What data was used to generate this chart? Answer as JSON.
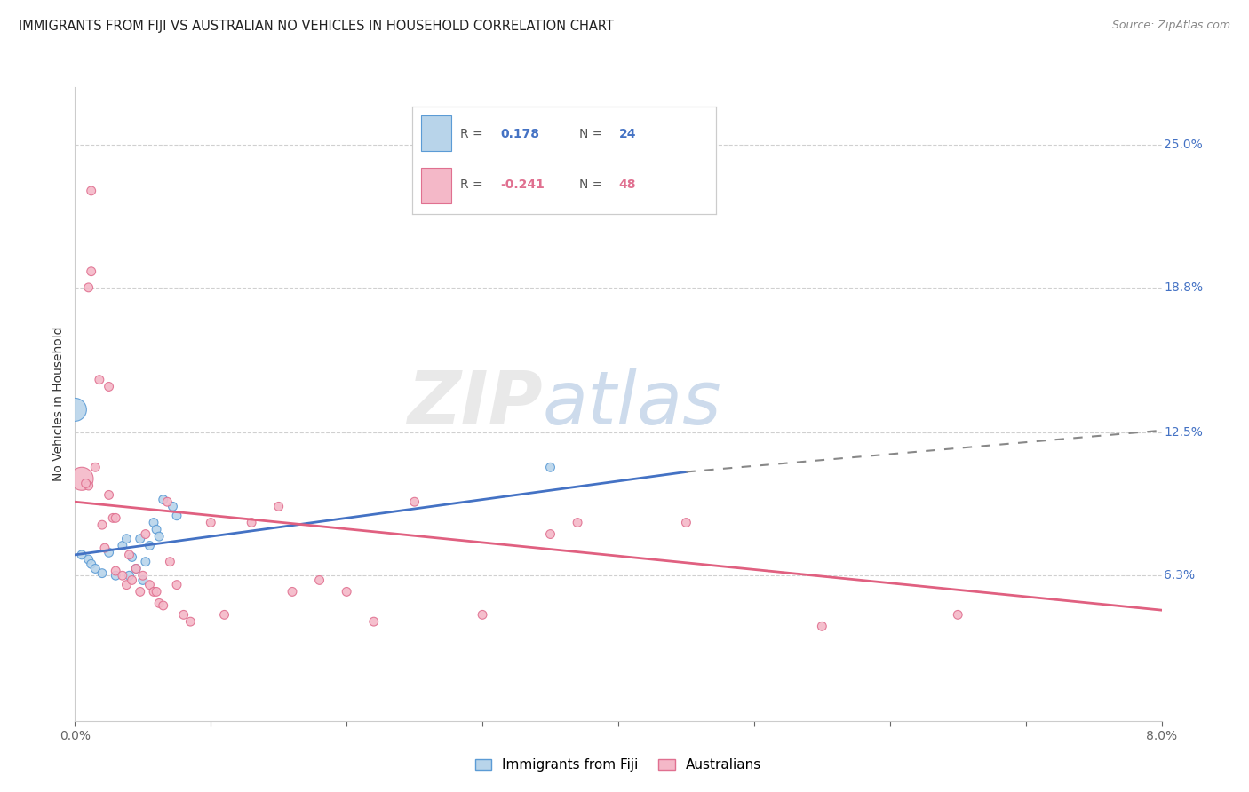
{
  "title": "IMMIGRANTS FROM FIJI VS AUSTRALIAN NO VEHICLES IN HOUSEHOLD CORRELATION CHART",
  "source": "Source: ZipAtlas.com",
  "ylabel": "No Vehicles in Household",
  "ytick_labels": [
    "6.3%",
    "12.5%",
    "18.8%",
    "25.0%"
  ],
  "ytick_values": [
    6.3,
    12.5,
    18.8,
    25.0
  ],
  "xlim": [
    0.0,
    8.0
  ],
  "ylim": [
    0.0,
    27.5
  ],
  "fiji_color": "#b8d4ea",
  "fiji_edge_color": "#5b9bd5",
  "aus_color": "#f4b8c8",
  "aus_edge_color": "#e07090",
  "fiji_R": "0.178",
  "fiji_N": "24",
  "aus_R": "-0.241",
  "aus_N": "48",
  "fiji_line_color": "#4472c4",
  "aus_line_color": "#e06080",
  "watermark_zip": "ZIP",
  "watermark_atlas": "atlas",
  "fiji_scatter_x": [
    0.05,
    0.1,
    0.12,
    0.15,
    0.2,
    0.25,
    0.3,
    0.35,
    0.38,
    0.4,
    0.42,
    0.45,
    0.48,
    0.5,
    0.52,
    0.55,
    0.58,
    0.6,
    0.62,
    0.65,
    0.72,
    0.75,
    3.5,
    0.0
  ],
  "fiji_scatter_y": [
    7.2,
    7.0,
    6.8,
    6.6,
    6.4,
    7.3,
    6.3,
    7.6,
    7.9,
    6.3,
    7.1,
    6.6,
    7.9,
    6.1,
    6.9,
    7.6,
    8.6,
    8.3,
    8.0,
    9.6,
    9.3,
    8.9,
    11.0,
    13.5
  ],
  "fiji_sizes": [
    50,
    50,
    50,
    50,
    50,
    50,
    50,
    50,
    50,
    50,
    50,
    50,
    50,
    50,
    50,
    50,
    50,
    50,
    50,
    50,
    50,
    50,
    50,
    350
  ],
  "aus_scatter_x": [
    0.05,
    0.1,
    0.12,
    0.12,
    0.15,
    0.18,
    0.2,
    0.22,
    0.25,
    0.28,
    0.3,
    0.3,
    0.35,
    0.38,
    0.4,
    0.42,
    0.45,
    0.48,
    0.5,
    0.52,
    0.55,
    0.58,
    0.6,
    0.62,
    0.65,
    0.68,
    0.7,
    0.75,
    0.8,
    0.85,
    1.0,
    1.1,
    1.3,
    1.5,
    1.6,
    1.8,
    2.0,
    2.2,
    2.5,
    3.0,
    3.5,
    3.7,
    4.5,
    5.5,
    6.5,
    0.08,
    0.1,
    0.25
  ],
  "aus_scatter_y": [
    10.5,
    10.2,
    19.5,
    23.0,
    11.0,
    14.8,
    8.5,
    7.5,
    9.8,
    8.8,
    8.8,
    6.5,
    6.3,
    5.9,
    7.2,
    6.1,
    6.6,
    5.6,
    6.3,
    8.1,
    5.9,
    5.6,
    5.6,
    5.1,
    5.0,
    9.5,
    6.9,
    5.9,
    4.6,
    4.3,
    8.6,
    4.6,
    8.6,
    9.3,
    5.6,
    6.1,
    5.6,
    4.3,
    9.5,
    4.6,
    8.1,
    8.6,
    8.6,
    4.1,
    4.6,
    10.3,
    18.8,
    14.5
  ],
  "aus_sizes": [
    350,
    50,
    50,
    50,
    50,
    50,
    50,
    50,
    50,
    50,
    50,
    50,
    50,
    50,
    50,
    50,
    50,
    50,
    50,
    50,
    50,
    50,
    50,
    50,
    50,
    50,
    50,
    50,
    50,
    50,
    50,
    50,
    50,
    50,
    50,
    50,
    50,
    50,
    50,
    50,
    50,
    50,
    50,
    50,
    50,
    50,
    50,
    50
  ],
  "fiji_line_x0": 0.0,
  "fiji_line_y0": 7.2,
  "fiji_line_x1": 4.5,
  "fiji_line_y1": 10.8,
  "fiji_dash_x0": 4.5,
  "fiji_dash_y0": 10.8,
  "fiji_dash_x1": 8.0,
  "fiji_dash_y1": 12.6,
  "aus_line_x0": 0.0,
  "aus_line_y0": 9.5,
  "aus_line_x1": 8.0,
  "aus_line_y1": 4.8,
  "legend_fiji_label": "Immigrants from Fiji",
  "legend_aus_label": "Australians"
}
